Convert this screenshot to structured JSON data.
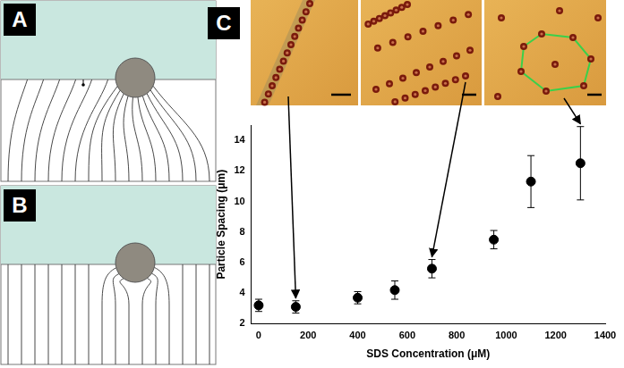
{
  "panels": [
    {
      "label": "A"
    },
    {
      "label": "B"
    },
    {
      "label": "C"
    }
  ],
  "chart_data": {
    "type": "scatter",
    "x_label": "SDS Concentration (μM)",
    "y_label": "Particle Spacing (μm)",
    "x": [
      0,
      150,
      400,
      550,
      700,
      950,
      1100,
      1300
    ],
    "values": [
      3.2,
      3.1,
      3.7,
      4.2,
      5.6,
      7.5,
      11.3,
      12.5
    ],
    "errors": [
      0.4,
      0.4,
      0.4,
      0.6,
      0.6,
      0.6,
      1.7,
      2.4
    ],
    "color": "#000000",
    "marker": "circle",
    "xlim": [
      -30,
      1400
    ],
    "xticks": [
      0,
      200,
      400,
      600,
      800,
      1000,
      1200,
      1400
    ],
    "ylim": [
      2,
      15
    ],
    "yticks": [
      2,
      4,
      6,
      8,
      10,
      12,
      14
    ],
    "grid": false,
    "micrograph_points": [
      150,
      700,
      1300
    ]
  }
}
